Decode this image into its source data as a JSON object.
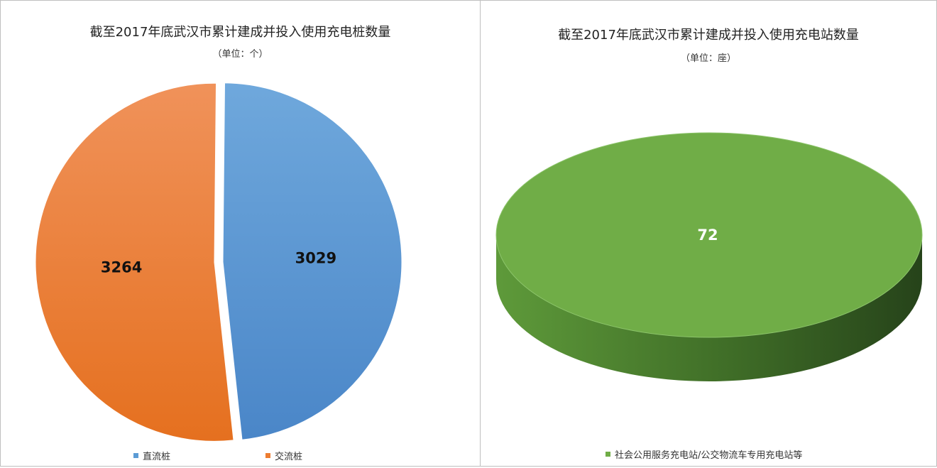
{
  "chart_data": [
    {
      "type": "pie",
      "title": "截至2017年底武汉市累计建成并投入使用充电桩数量",
      "subtitle": "（单位：个）",
      "categories": [
        "直流桩",
        "交流桩"
      ],
      "values": [
        3029,
        3264
      ],
      "colors": [
        "#5b9bd5",
        "#ed7d31"
      ],
      "legend_position": "bottom"
    },
    {
      "type": "pie",
      "title": "截至2017年底武汉市累计建成并投入使用充电站数量",
      "subtitle": "（单位：座）",
      "categories": [
        "社会公用服务充电站/公交物流车专用充电站等"
      ],
      "values": [
        72
      ],
      "colors": [
        "#70ad47"
      ],
      "legend_position": "bottom",
      "style": "3d"
    }
  ]
}
